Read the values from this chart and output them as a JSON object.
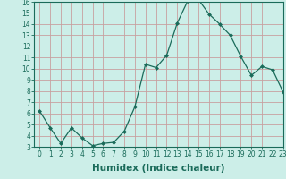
{
  "x": [
    0,
    1,
    2,
    3,
    4,
    5,
    6,
    7,
    8,
    9,
    10,
    11,
    12,
    13,
    14,
    15,
    16,
    17,
    18,
    19,
    20,
    21,
    22,
    23
  ],
  "y": [
    6.2,
    4.7,
    3.3,
    4.7,
    3.8,
    3.1,
    3.3,
    3.4,
    4.4,
    6.6,
    10.4,
    10.1,
    11.2,
    14.1,
    16.1,
    16.2,
    14.9,
    14.0,
    13.0,
    11.1,
    9.4,
    10.2,
    9.9,
    7.9
  ],
  "line_color": "#1a6b5a",
  "marker": "D",
  "marker_size": 2.0,
  "bg_color": "#cceee8",
  "grid_color_x": "#c8a0a0",
  "grid_color_y": "#c8a0a0",
  "xlabel": "Humidex (Indice chaleur)",
  "ylim": [
    3,
    16
  ],
  "xlim": [
    -0.5,
    23
  ],
  "yticks": [
    3,
    4,
    5,
    6,
    7,
    8,
    9,
    10,
    11,
    12,
    13,
    14,
    15,
    16
  ],
  "xticks": [
    0,
    1,
    2,
    3,
    4,
    5,
    6,
    7,
    8,
    9,
    10,
    11,
    12,
    13,
    14,
    15,
    16,
    17,
    18,
    19,
    20,
    21,
    22,
    23
  ],
  "tick_label_fontsize": 5.5,
  "xlabel_fontsize": 7.5,
  "axis_color": "#1a6b5a",
  "spine_color": "#1a6b5a",
  "linewidth": 0.9
}
